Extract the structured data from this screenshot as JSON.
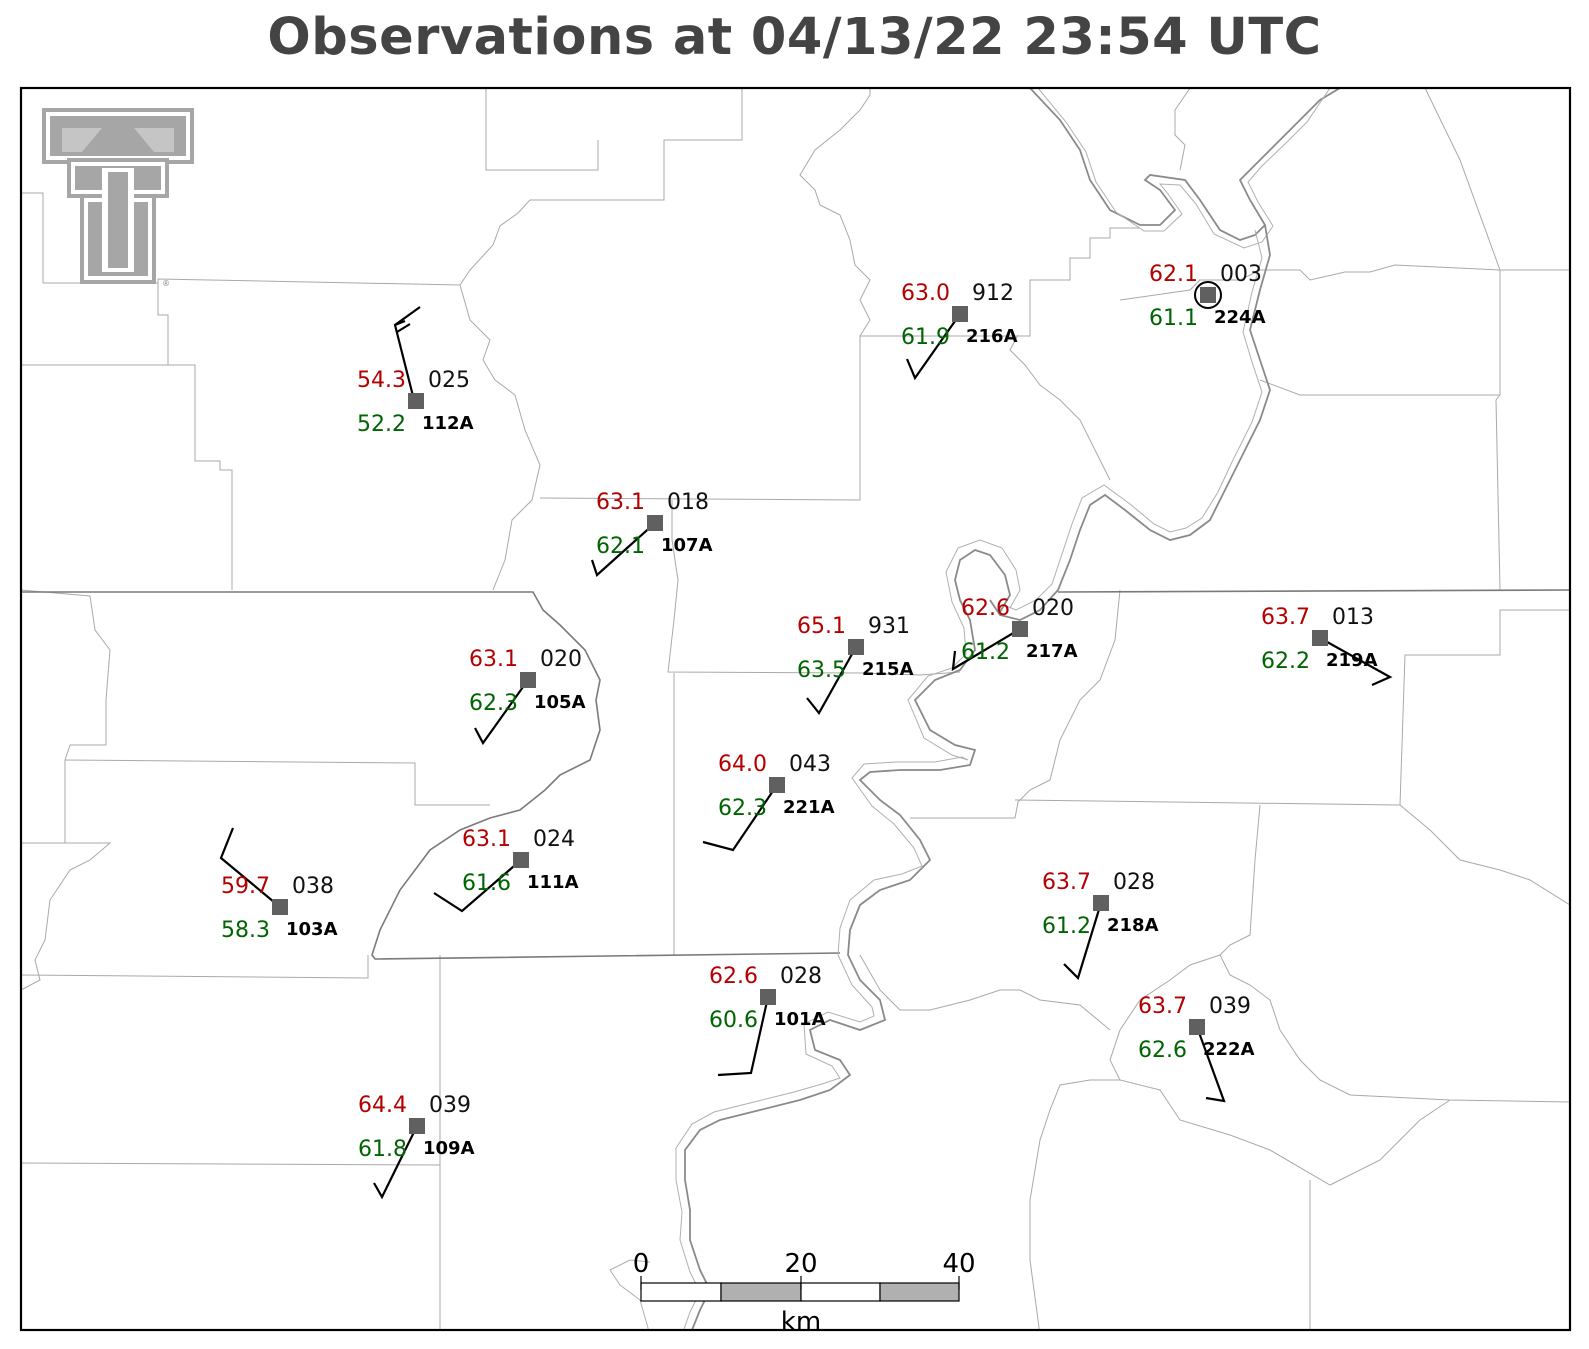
{
  "title": "Observations at 04/13/22 23:54 UTC",
  "logo": {
    "name": "Texas Tech Double T",
    "color": "#9a9a9a"
  },
  "colors": {
    "temperature": "#b30000",
    "dewpoint": "#006400",
    "pressure": "#111111",
    "station_marker": "#606060"
  },
  "stations": [
    {
      "id": "112A",
      "temp": "54.3",
      "dew": "52.2",
      "pres": "025"
    },
    {
      "id": "107A",
      "temp": "63.1",
      "dew": "62.1",
      "pres": "018"
    },
    {
      "id": "216A",
      "temp": "63.0",
      "dew": "61.9",
      "pres": "912"
    },
    {
      "id": "224A",
      "temp": "62.1",
      "dew": "61.1",
      "pres": "003"
    },
    {
      "id": "105A",
      "temp": "63.1",
      "dew": "62.3",
      "pres": "020"
    },
    {
      "id": "215A",
      "temp": "65.1",
      "dew": "63.5",
      "pres": "931"
    },
    {
      "id": "217A",
      "temp": "62.6",
      "dew": "61.2",
      "pres": "020"
    },
    {
      "id": "219A",
      "temp": "63.7",
      "dew": "62.2",
      "pres": "013"
    },
    {
      "id": "221A",
      "temp": "64.0",
      "dew": "62.3",
      "pres": "043"
    },
    {
      "id": "111A",
      "temp": "63.1",
      "dew": "61.6",
      "pres": "024"
    },
    {
      "id": "103A",
      "temp": "59.7",
      "dew": "58.3",
      "pres": "038"
    },
    {
      "id": "218A",
      "temp": "63.7",
      "dew": "61.2",
      "pres": "028"
    },
    {
      "id": "101A",
      "temp": "62.6",
      "dew": "60.6",
      "pres": "028"
    },
    {
      "id": "222A",
      "temp": "63.7",
      "dew": "62.6",
      "pres": "039"
    },
    {
      "id": "109A",
      "temp": "64.4",
      "dew": "61.8",
      "pres": "039"
    }
  ],
  "scale_bar": {
    "labels": [
      "0",
      "20",
      "40"
    ],
    "unit": "km"
  }
}
